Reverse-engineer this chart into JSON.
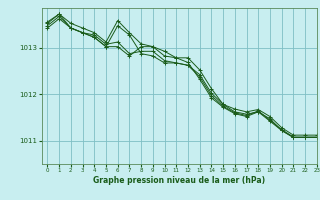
{
  "title": "Graphe pression niveau de la mer (hPa)",
  "background_color": "#c8eef0",
  "grid_color": "#7fbfc4",
  "line_color": "#1a5c1a",
  "xlim": [
    -0.5,
    23
  ],
  "ylim": [
    1010.5,
    1013.85
  ],
  "yticks": [
    1011,
    1012,
    1013
  ],
  "xticks": [
    0,
    1,
    2,
    3,
    4,
    5,
    6,
    7,
    8,
    9,
    10,
    11,
    12,
    13,
    14,
    15,
    16,
    17,
    18,
    19,
    20,
    21,
    22,
    23
  ],
  "series": [
    [
      1013.55,
      1013.72,
      1013.52,
      1013.42,
      1013.32,
      1013.12,
      1013.58,
      1013.32,
      1013.08,
      1013.02,
      1012.92,
      1012.78,
      1012.78,
      1012.52,
      1012.12,
      1011.78,
      1011.68,
      1011.62,
      1011.67,
      1011.52,
      1011.28,
      1011.12,
      1011.12,
      1011.12
    ],
    [
      1013.42,
      1013.62,
      1013.42,
      1013.32,
      1013.22,
      1013.02,
      1013.02,
      1012.82,
      1013.02,
      1013.02,
      1012.82,
      1012.78,
      1012.68,
      1012.32,
      1011.92,
      1011.72,
      1011.58,
      1011.52,
      1011.62,
      1011.47,
      1011.22,
      1011.07,
      1011.07,
      1011.07
    ],
    [
      1013.52,
      1013.72,
      1013.42,
      1013.32,
      1013.22,
      1013.02,
      1013.47,
      1013.27,
      1012.87,
      1012.82,
      1012.67,
      1012.67,
      1012.62,
      1012.42,
      1012.02,
      1011.78,
      1011.62,
      1011.57,
      1011.62,
      1011.42,
      1011.22,
      1011.07,
      1011.07,
      1011.07
    ],
    [
      1013.47,
      1013.67,
      1013.42,
      1013.32,
      1013.27,
      1013.07,
      1013.12,
      1012.87,
      1012.92,
      1012.92,
      1012.72,
      1012.67,
      1012.62,
      1012.37,
      1011.97,
      1011.74,
      1011.6,
      1011.54,
      1011.64,
      1011.44,
      1011.24,
      1011.08,
      1011.08,
      1011.08
    ]
  ]
}
